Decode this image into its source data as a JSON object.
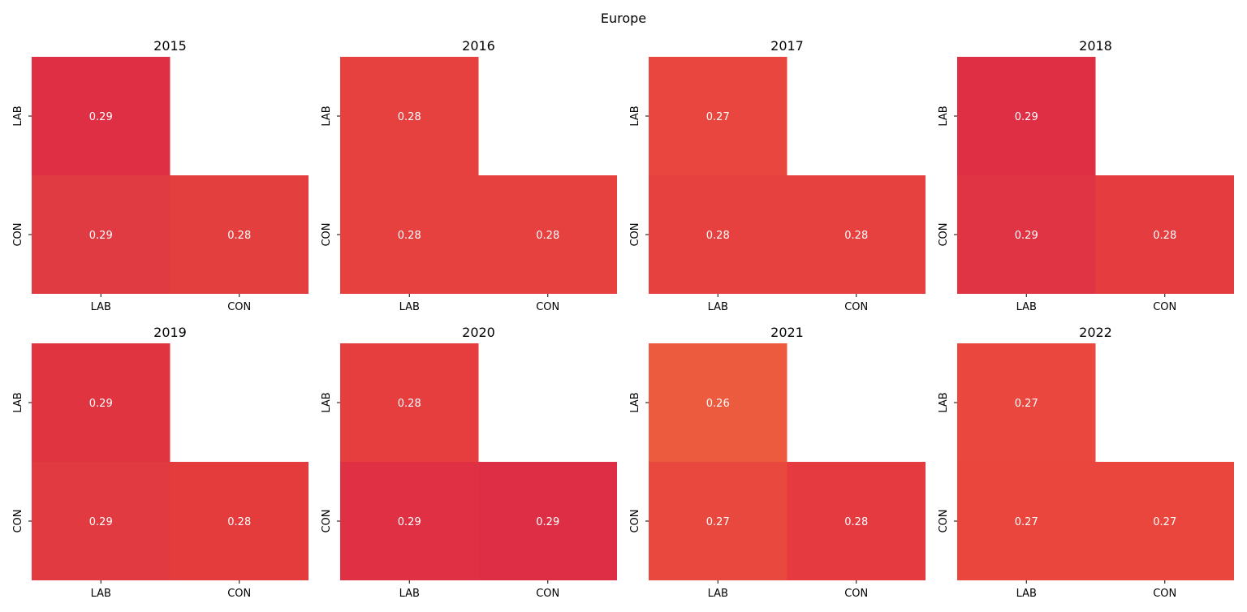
{
  "figure": {
    "title": "Europe"
  },
  "chart_data": [
    {
      "type": "heatmap",
      "title": "2015",
      "x_labels": [
        "LAB",
        "CON"
      ],
      "y_labels": [
        "LAB",
        "CON"
      ],
      "values": [
        [
          0.29,
          null
        ],
        [
          0.29,
          0.28
        ]
      ],
      "labels": [
        [
          "0.29",
          ""
        ],
        [
          "0.29",
          "0.28"
        ]
      ],
      "mask": "upper-triangle"
    },
    {
      "type": "heatmap",
      "title": "2016",
      "x_labels": [
        "LAB",
        "CON"
      ],
      "y_labels": [
        "LAB",
        "CON"
      ],
      "values": [
        [
          0.28,
          null
        ],
        [
          0.28,
          0.28
        ]
      ],
      "labels": [
        [
          "0.28",
          ""
        ],
        [
          "0.28",
          "0.28"
        ]
      ],
      "mask": "upper-triangle"
    },
    {
      "type": "heatmap",
      "title": "2017",
      "x_labels": [
        "LAB",
        "CON"
      ],
      "y_labels": [
        "LAB",
        "CON"
      ],
      "values": [
        [
          0.27,
          null
        ],
        [
          0.28,
          0.28
        ]
      ],
      "labels": [
        [
          "0.27",
          ""
        ],
        [
          "0.28",
          "0.28"
        ]
      ],
      "mask": "upper-triangle"
    },
    {
      "type": "heatmap",
      "title": "2018",
      "x_labels": [
        "LAB",
        "CON"
      ],
      "y_labels": [
        "LAB",
        "CON"
      ],
      "values": [
        [
          0.29,
          null
        ],
        [
          0.29,
          0.28
        ]
      ],
      "labels": [
        [
          "0.29",
          ""
        ],
        [
          "0.29",
          "0.28"
        ]
      ],
      "mask": "upper-triangle"
    },
    {
      "type": "heatmap",
      "title": "2019",
      "x_labels": [
        "LAB",
        "CON"
      ],
      "y_labels": [
        "LAB",
        "CON"
      ],
      "values": [
        [
          0.29,
          null
        ],
        [
          0.29,
          0.28
        ]
      ],
      "labels": [
        [
          "0.29",
          ""
        ],
        [
          "0.29",
          "0.28"
        ]
      ],
      "mask": "upper-triangle"
    },
    {
      "type": "heatmap",
      "title": "2020",
      "x_labels": [
        "LAB",
        "CON"
      ],
      "y_labels": [
        "LAB",
        "CON"
      ],
      "values": [
        [
          0.28,
          null
        ],
        [
          0.29,
          0.29
        ]
      ],
      "labels": [
        [
          "0.28",
          ""
        ],
        [
          "0.29",
          "0.29"
        ]
      ],
      "mask": "upper-triangle"
    },
    {
      "type": "heatmap",
      "title": "2021",
      "x_labels": [
        "LAB",
        "CON"
      ],
      "y_labels": [
        "LAB",
        "CON"
      ],
      "values": [
        [
          0.26,
          null
        ],
        [
          0.27,
          0.28
        ]
      ],
      "labels": [
        [
          "0.26",
          ""
        ],
        [
          "0.27",
          "0.28"
        ]
      ],
      "mask": "upper-triangle"
    },
    {
      "type": "heatmap",
      "title": "2022",
      "x_labels": [
        "LAB",
        "CON"
      ],
      "y_labels": [
        "LAB",
        "CON"
      ],
      "values": [
        [
          0.27,
          null
        ],
        [
          0.27,
          0.27
        ]
      ],
      "labels": [
        [
          "0.27",
          ""
        ],
        [
          "0.27",
          "0.27"
        ]
      ],
      "mask": "upper-triangle"
    }
  ],
  "colors": {
    "cells": [
      [
        [
          "#df2f44",
          null
        ],
        [
          "#e03a42",
          "#e43f3f"
        ]
      ],
      [
        [
          "#e6403f",
          null
        ],
        [
          "#e6403f",
          "#e6403f"
        ]
      ],
      [
        [
          "#e8463e",
          null
        ],
        [
          "#e6403f",
          "#e6403f"
        ]
      ],
      [
        [
          "#df2f44",
          null
        ],
        [
          "#e03344",
          "#e43c3f"
        ]
      ],
      [
        [
          "#e03441",
          null
        ],
        [
          "#e13a40",
          "#e43c3d"
        ]
      ],
      [
        [
          "#e63d3f",
          null
        ],
        [
          "#df3143",
          "#de2e46"
        ]
      ],
      [
        [
          "#ed5b3f",
          null
        ],
        [
          "#e9483e",
          "#e53a3f"
        ]
      ],
      [
        [
          "#ea483e",
          null
        ],
        [
          "#ea463e",
          "#ea463e"
        ]
      ]
    ],
    "cell_text": "#ffffff",
    "background": "#ffffff"
  }
}
